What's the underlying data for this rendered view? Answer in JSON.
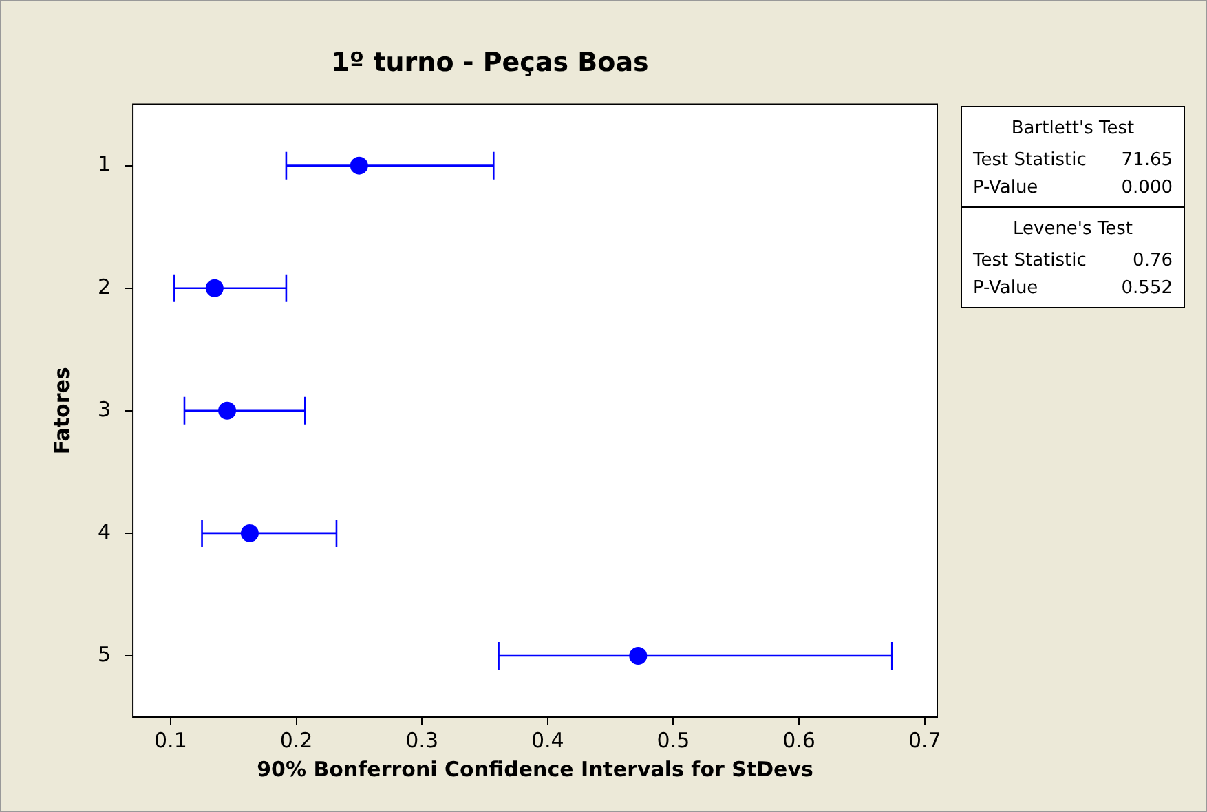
{
  "chart_data": {
    "type": "scatter",
    "orientation": "horizontal",
    "title": "1º turno - Peças Boas",
    "xlabel": "90% Bonferroni Confidence Intervals for StDevs",
    "ylabel": "Fatores",
    "categories": [
      "1",
      "2",
      "3",
      "4",
      "5"
    ],
    "series": [
      {
        "color": "#0000ff",
        "values": [
          0.25,
          0.135,
          0.145,
          0.163,
          0.472
        ],
        "errors": [
          [
            0.192,
            0.357
          ],
          [
            0.103,
            0.192
          ],
          [
            0.111,
            0.207
          ],
          [
            0.125,
            0.232
          ],
          [
            0.361,
            0.674
          ]
        ]
      }
    ],
    "xlim": [
      0.07,
      0.71
    ],
    "xticks": [
      {
        "value": 0.1,
        "label": "0.1"
      },
      {
        "value": 0.2,
        "label": "0.2"
      },
      {
        "value": 0.3,
        "label": "0.3"
      },
      {
        "value": 0.4,
        "label": "0.4"
      },
      {
        "value": 0.5,
        "label": "0.5"
      },
      {
        "value": 0.6,
        "label": "0.6"
      },
      {
        "value": 0.7,
        "label": "0.7"
      }
    ],
    "marker": "circle",
    "grid": false,
    "legend": false,
    "annotations": [
      "Bartlett's Test",
      "Test Statistic",
      "71.65",
      "P-Value",
      "0.000",
      "Levene's Test",
      "Test Statistic",
      "0.76",
      "P-Value",
      "0.552"
    ]
  }
}
